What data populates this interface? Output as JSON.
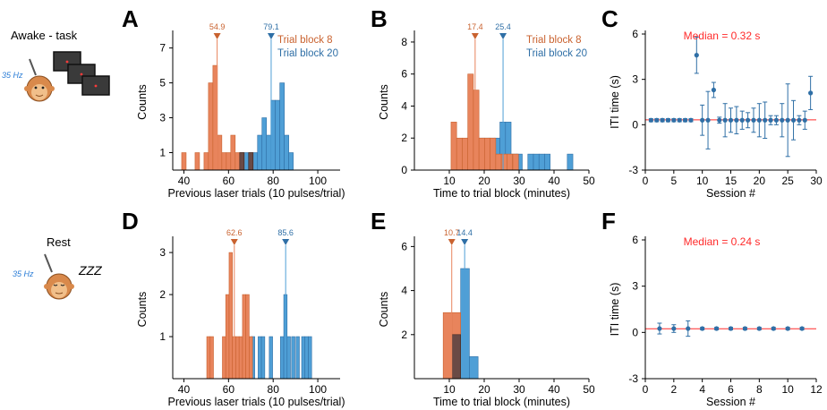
{
  "colors": {
    "orange": "#e8845c",
    "orange_dark": "#c9622f",
    "blue": "#4f9fd6",
    "blue_dark": "#2f6fa6",
    "overlap": "#6a4a45",
    "median_red": "#ff2a2a",
    "axis": "#000000"
  },
  "side_labels": {
    "awake": "Awake - task",
    "rest": "Rest",
    "hz_awake": "35 Hz",
    "hz_rest": "35 Hz",
    "zzz": "ZZZ"
  },
  "chart_data": [
    {
      "panel": "A",
      "type": "bar",
      "subtype": "overlapping-histogram",
      "xlabel": "Previous laser trials (10 pulses/trial)",
      "ylabel": "Counts",
      "xlim": [
        35,
        110
      ],
      "xticks": [
        40,
        60,
        80,
        100
      ],
      "ylim": [
        0,
        7.8
      ],
      "yticks": [
        1,
        3,
        5,
        7
      ],
      "bin_width": 2,
      "legend": [
        "Trial block 8",
        "Trial block 20"
      ],
      "legend_position": "top-right",
      "series": [
        {
          "name": "Trial block 8",
          "color": "orange",
          "bins": [
            {
              "x": 40,
              "y": 1
            },
            {
              "x": 46,
              "y": 1
            },
            {
              "x": 50,
              "y": 1
            },
            {
              "x": 52,
              "y": 5
            },
            {
              "x": 54,
              "y": 6
            },
            {
              "x": 56,
              "y": 2
            },
            {
              "x": 58,
              "y": 1
            },
            {
              "x": 60,
              "y": 1
            },
            {
              "x": 62,
              "y": 2
            },
            {
              "x": 64,
              "y": 1
            },
            {
              "x": 66,
              "y": 1
            },
            {
              "x": 70,
              "y": 1
            }
          ],
          "marker": {
            "value": 54.9,
            "label": "54.9"
          }
        },
        {
          "name": "Trial block 20",
          "color": "blue",
          "bins": [
            {
              "x": 66,
              "y": 1
            },
            {
              "x": 68,
              "y": 1
            },
            {
              "x": 70,
              "y": 1
            },
            {
              "x": 72,
              "y": 1
            },
            {
              "x": 74,
              "y": 2
            },
            {
              "x": 76,
              "y": 3
            },
            {
              "x": 78,
              "y": 2
            },
            {
              "x": 80,
              "y": 4
            },
            {
              "x": 82,
              "y": 4
            },
            {
              "x": 84,
              "y": 5
            },
            {
              "x": 86,
              "y": 2
            },
            {
              "x": 88,
              "y": 1
            }
          ],
          "marker": {
            "value": 79.1,
            "label": "79.1"
          }
        }
      ]
    },
    {
      "panel": "B",
      "type": "bar",
      "subtype": "overlapping-histogram",
      "xlabel": "Time to trial block (minutes)",
      "ylabel": "Counts",
      "xlim": [
        0,
        50
      ],
      "xticks": [
        10,
        20,
        30,
        40,
        50
      ],
      "ylim": [
        0,
        8.5
      ],
      "yticks": [
        0,
        2,
        4,
        6,
        8
      ],
      "bin_width": 1.6,
      "legend": [
        "Trial block 8",
        "Trial block 20"
      ],
      "legend_position": "top-right",
      "series": [
        {
          "name": "Trial block 8",
          "color": "orange",
          "bins": [
            {
              "x": 11.3,
              "y": 3
            },
            {
              "x": 12.9,
              "y": 2
            },
            {
              "x": 14.5,
              "y": 2
            },
            {
              "x": 16.1,
              "y": 6
            },
            {
              "x": 17.7,
              "y": 5
            },
            {
              "x": 19.3,
              "y": 2
            },
            {
              "x": 20.9,
              "y": 2
            },
            {
              "x": 22.5,
              "y": 2
            },
            {
              "x": 24.1,
              "y": 1
            },
            {
              "x": 25.7,
              "y": 1
            },
            {
              "x": 27.3,
              "y": 1
            },
            {
              "x": 29,
              "y": 1
            }
          ],
          "marker": {
            "value": 17.4,
            "label": "17.4"
          }
        },
        {
          "name": "Trial block 20",
          "color": "blue",
          "bins": [
            {
              "x": 15.7,
              "y": 2
            },
            {
              "x": 18.9,
              "y": 2
            },
            {
              "x": 20.5,
              "y": 2
            },
            {
              "x": 22.1,
              "y": 2
            },
            {
              "x": 23.7,
              "y": 2
            },
            {
              "x": 25.3,
              "y": 3
            },
            {
              "x": 26.9,
              "y": 3
            },
            {
              "x": 28.5,
              "y": 1
            },
            {
              "x": 30.1,
              "y": 1
            },
            {
              "x": 33.3,
              "y": 1
            },
            {
              "x": 34.9,
              "y": 1
            },
            {
              "x": 36.5,
              "y": 1
            },
            {
              "x": 38.1,
              "y": 1
            },
            {
              "x": 44.6,
              "y": 1
            }
          ],
          "marker": {
            "value": 25.4,
            "label": "25.4"
          }
        }
      ]
    },
    {
      "panel": "C",
      "type": "scatter",
      "subtype": "errorbar",
      "title": "Median = 0.32 s",
      "xlabel": "Session #",
      "ylabel": "ITI time (s)",
      "xlim": [
        0,
        30
      ],
      "xticks": [
        0,
        5,
        10,
        15,
        20,
        25,
        30
      ],
      "ylim": [
        -3,
        6
      ],
      "yticks": [
        -3,
        0,
        3,
        6
      ],
      "median": 0.32,
      "points": [
        {
          "x": 1,
          "y": 0.3,
          "err": 0.1
        },
        {
          "x": 2,
          "y": 0.3,
          "err": 0.1
        },
        {
          "x": 3,
          "y": 0.3,
          "err": 0.1
        },
        {
          "x": 4,
          "y": 0.3,
          "err": 0.1
        },
        {
          "x": 5,
          "y": 0.3,
          "err": 0.1
        },
        {
          "x": 6,
          "y": 0.3,
          "err": 0.1
        },
        {
          "x": 7,
          "y": 0.3,
          "err": 0.1
        },
        {
          "x": 8,
          "y": 0.3,
          "err": 0.1
        },
        {
          "x": 9,
          "y": 4.6,
          "err": 1.2
        },
        {
          "x": 10,
          "y": 0.3,
          "err": 1.0
        },
        {
          "x": 11,
          "y": 0.3,
          "err": 1.9
        },
        {
          "x": 12,
          "y": 2.3,
          "err": 0.5
        },
        {
          "x": 13,
          "y": 0.3,
          "err": 0.2
        },
        {
          "x": 14,
          "y": 0.3,
          "err": 1.1
        },
        {
          "x": 15,
          "y": 0.3,
          "err": 0.8
        },
        {
          "x": 16,
          "y": 0.3,
          "err": 0.9
        },
        {
          "x": 17,
          "y": 0.3,
          "err": 0.6
        },
        {
          "x": 18,
          "y": 0.3,
          "err": 0.5
        },
        {
          "x": 19,
          "y": 0.3,
          "err": 0.8
        },
        {
          "x": 20,
          "y": 0.3,
          "err": 1.1
        },
        {
          "x": 21,
          "y": 0.3,
          "err": 1.2
        },
        {
          "x": 22,
          "y": 0.3,
          "err": 0.3
        },
        {
          "x": 23,
          "y": 0.3,
          "err": 0.3
        },
        {
          "x": 24,
          "y": 0.3,
          "err": 1.1
        },
        {
          "x": 25,
          "y": 0.3,
          "err": 2.4
        },
        {
          "x": 26,
          "y": 0.3,
          "err": 1.3
        },
        {
          "x": 27,
          "y": 0.3,
          "err": 0.3
        },
        {
          "x": 28,
          "y": 0.3,
          "err": 0.6
        },
        {
          "x": 29,
          "y": 2.1,
          "err": 1.1
        }
      ]
    },
    {
      "panel": "D",
      "type": "bar",
      "subtype": "overlapping-histogram",
      "xlabel": "Previous laser trials (10 pulses/trial)",
      "ylabel": "Counts",
      "xlim": [
        35,
        110
      ],
      "xticks": [
        40,
        60,
        80,
        100
      ],
      "ylim": [
        0,
        3.3
      ],
      "yticks": [
        1,
        2,
        3
      ],
      "bin_width": 1.5,
      "series": [
        {
          "name": "Trial block 8",
          "color": "orange",
          "bins": [
            {
              "x": 51,
              "y": 1
            },
            {
              "x": 52.5,
              "y": 1
            },
            {
              "x": 58,
              "y": 1
            },
            {
              "x": 59.5,
              "y": 2
            },
            {
              "x": 61,
              "y": 3
            },
            {
              "x": 62.5,
              "y": 1
            },
            {
              "x": 64,
              "y": 1
            },
            {
              "x": 65.5,
              "y": 1
            },
            {
              "x": 67,
              "y": 2
            },
            {
              "x": 68.5,
              "y": 2
            },
            {
              "x": 70,
              "y": 1
            }
          ],
          "marker": {
            "value": 62.6,
            "label": "62.6"
          }
        },
        {
          "name": "Trial block 20",
          "color": "blue",
          "bins": [
            {
              "x": 71,
              "y": 1
            },
            {
              "x": 74,
              "y": 1
            },
            {
              "x": 75.5,
              "y": 1
            },
            {
              "x": 79,
              "y": 1
            },
            {
              "x": 84,
              "y": 1
            },
            {
              "x": 85.5,
              "y": 2
            },
            {
              "x": 87,
              "y": 1
            },
            {
              "x": 89,
              "y": 1
            },
            {
              "x": 91,
              "y": 1
            },
            {
              "x": 93.5,
              "y": 1
            },
            {
              "x": 95,
              "y": 1
            },
            {
              "x": 96.5,
              "y": 1
            }
          ],
          "marker": {
            "value": 85.6,
            "label": "85.6"
          }
        }
      ]
    },
    {
      "panel": "E",
      "type": "bar",
      "subtype": "overlapping-histogram",
      "xlabel": "Time to trial block (minutes)",
      "ylabel": "Counts",
      "xlim": [
        0,
        50
      ],
      "xticks": [
        10,
        20,
        30,
        40,
        50
      ],
      "ylim": [
        0,
        6.3
      ],
      "yticks": [
        2,
        4,
        6
      ],
      "bin_width": 2.5,
      "series": [
        {
          "name": "Trial block 8",
          "color": "orange",
          "bins": [
            {
              "x": 9.5,
              "y": 3
            },
            {
              "x": 12,
              "y": 3
            }
          ],
          "marker": {
            "value": 10.7,
            "label": "10.7"
          }
        },
        {
          "name": "Trial block 20",
          "color": "blue",
          "bins": [
            {
              "x": 12,
              "y": 2
            },
            {
              "x": 14.5,
              "y": 5
            },
            {
              "x": 17,
              "y": 1
            }
          ],
          "marker": {
            "value": 14.4,
            "label": "14.4"
          }
        }
      ]
    },
    {
      "panel": "F",
      "type": "scatter",
      "subtype": "errorbar",
      "title": "Median = 0.24 s",
      "xlabel": "Session #",
      "ylabel": "ITI time (s)",
      "xlim": [
        0,
        12
      ],
      "xticks": [
        0,
        2,
        4,
        6,
        8,
        10,
        12
      ],
      "ylim": [
        -3,
        6
      ],
      "yticks": [
        -3,
        0,
        3,
        6
      ],
      "median": 0.24,
      "points": [
        {
          "x": 1,
          "y": 0.25,
          "err": 0.35
        },
        {
          "x": 2,
          "y": 0.25,
          "err": 0.25
        },
        {
          "x": 3,
          "y": 0.25,
          "err": 0.5
        },
        {
          "x": 4,
          "y": 0.25,
          "err": 0.08
        },
        {
          "x": 5,
          "y": 0.25,
          "err": 0.08
        },
        {
          "x": 6,
          "y": 0.25,
          "err": 0.08
        },
        {
          "x": 7,
          "y": 0.25,
          "err": 0.08
        },
        {
          "x": 8,
          "y": 0.25,
          "err": 0.08
        },
        {
          "x": 9,
          "y": 0.25,
          "err": 0.08
        },
        {
          "x": 10,
          "y": 0.25,
          "err": 0.08
        },
        {
          "x": 11,
          "y": 0.25,
          "err": 0.08
        }
      ]
    }
  ]
}
